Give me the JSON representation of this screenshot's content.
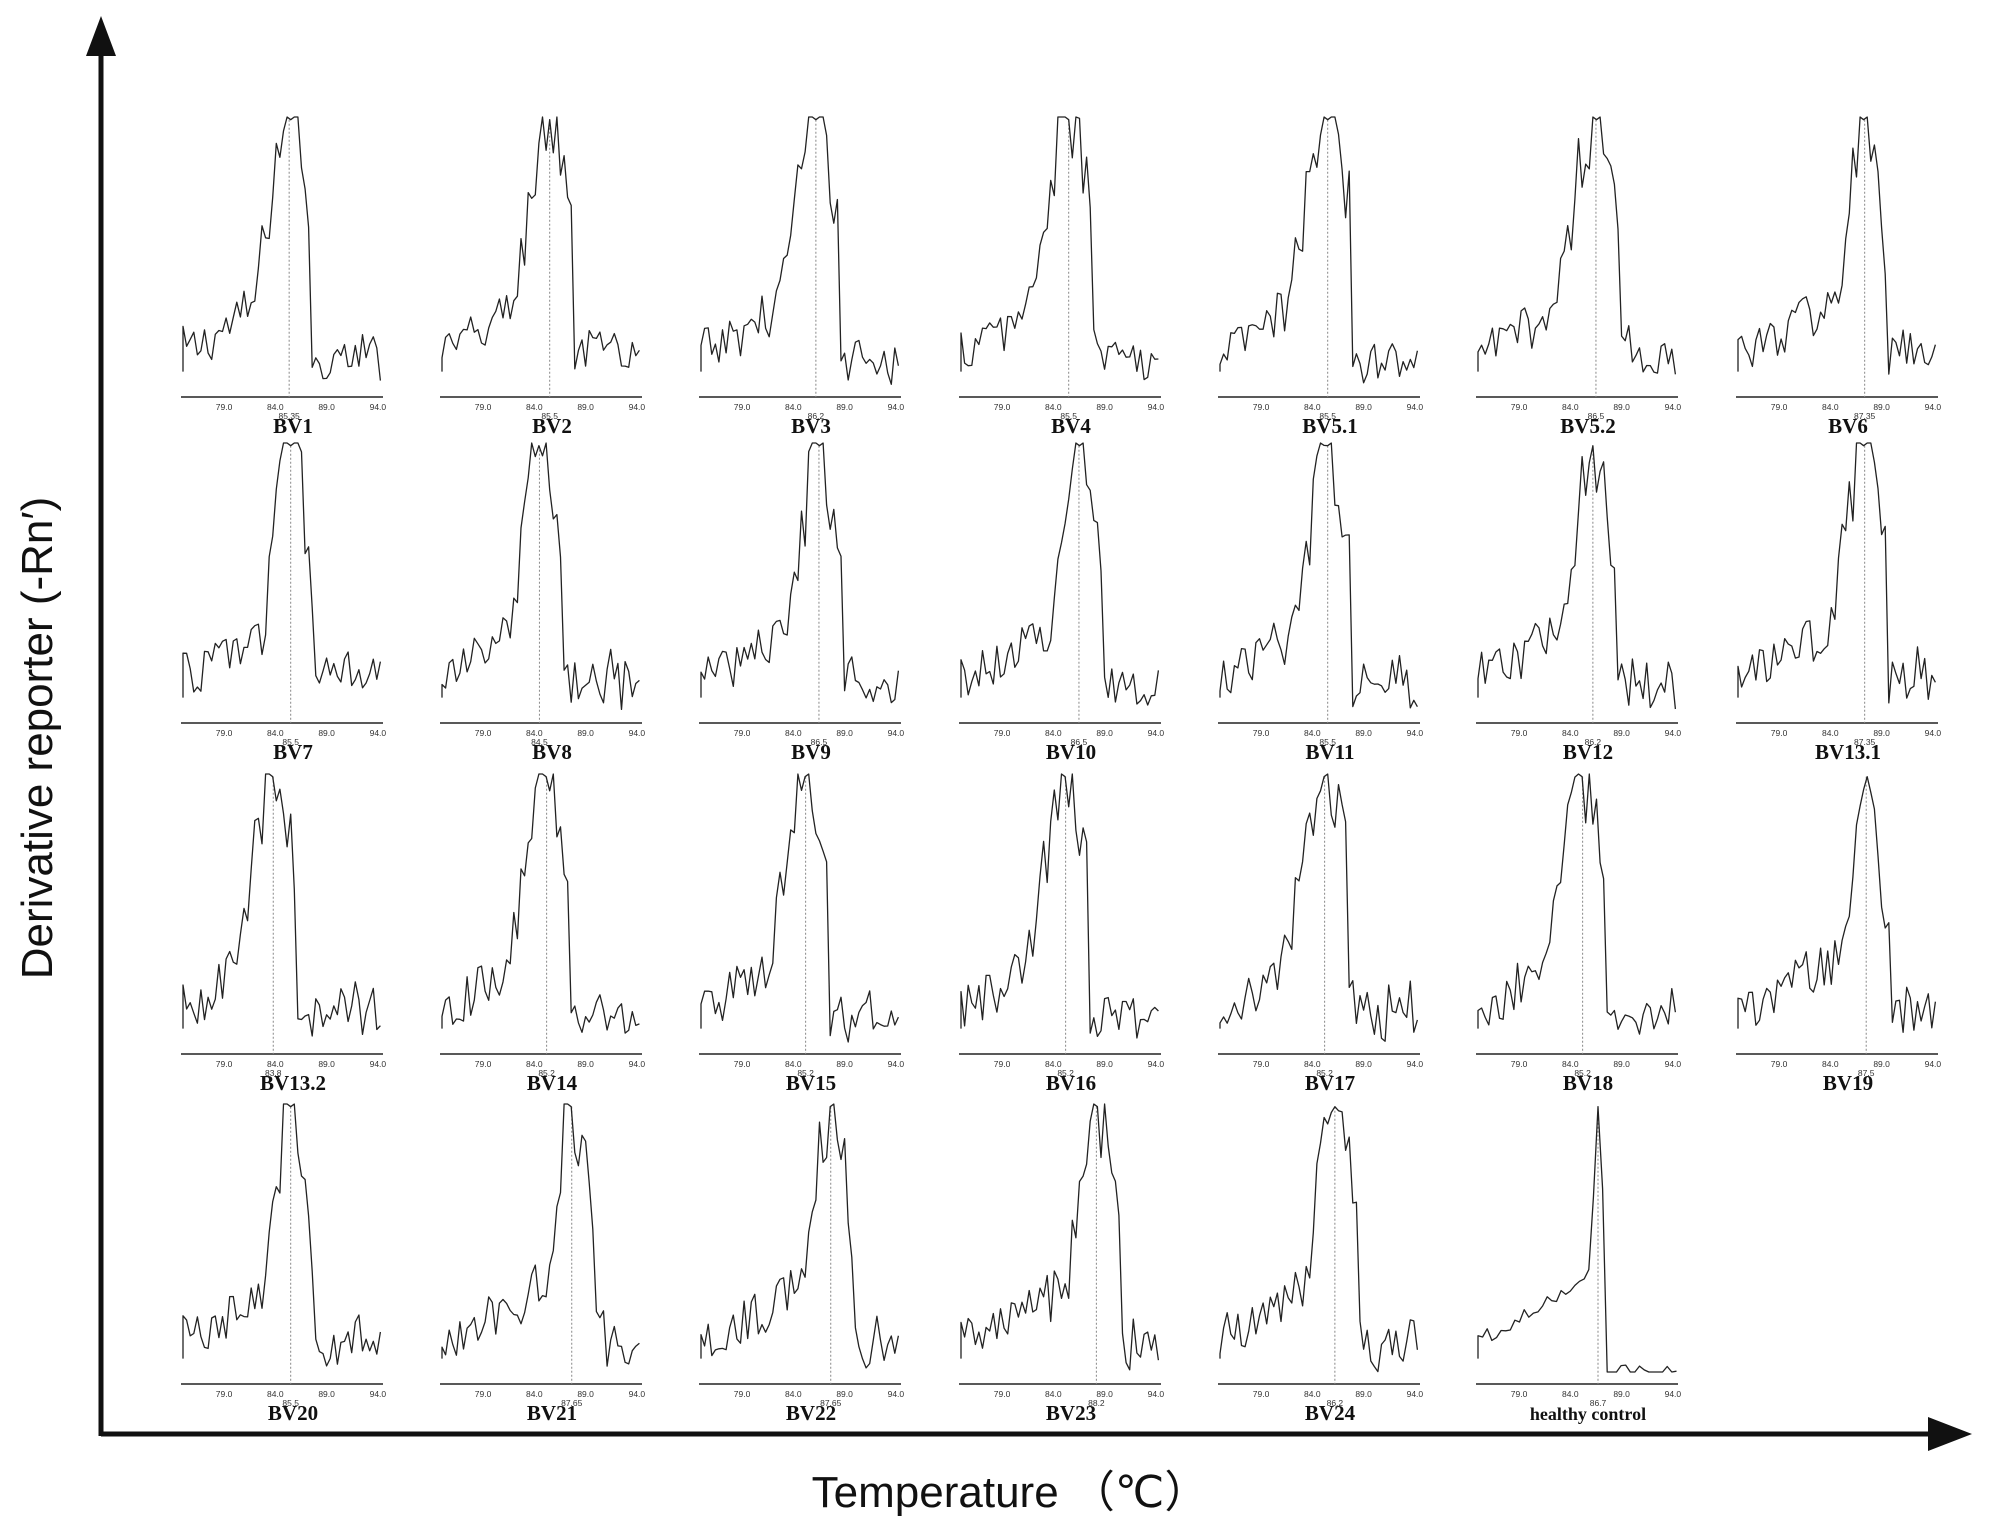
{
  "chart_data": {
    "type": "line",
    "title": "",
    "xlabel": "Temperature （℃）",
    "ylabel": "Derivative reporter (-Rn′)",
    "xlim": [
      75.0,
      94.5
    ],
    "ylim": [
      0,
      1
    ],
    "x_ticks": [
      "79.0",
      "84.0",
      "89.0",
      "94.0"
    ],
    "grid": false,
    "panels": [
      {
        "name": "BV1",
        "peak_label": "85.35",
        "peak": 85.35
      },
      {
        "name": "BV2",
        "peak_label": "85.5",
        "peak": 85.5
      },
      {
        "name": "BV3",
        "peak_label": "86.2",
        "peak": 86.2
      },
      {
        "name": "BV4",
        "peak_label": "85.5",
        "peak": 85.5
      },
      {
        "name": "BV5.1",
        "peak_label": "85.5",
        "peak": 85.5
      },
      {
        "name": "BV5.2",
        "peak_label": "86.5",
        "peak": 86.5
      },
      {
        "name": "BV6",
        "peak_label": "87.35",
        "peak": 87.35
      },
      {
        "name": "BV7",
        "peak_label": "85.5",
        "peak": 85.5
      },
      {
        "name": "BV8",
        "peak_label": "84.5",
        "peak": 84.5
      },
      {
        "name": "BV9",
        "peak_label": "86.5",
        "peak": 86.5
      },
      {
        "name": "BV10",
        "peak_label": "86.5",
        "peak": 86.5
      },
      {
        "name": "BV11",
        "peak_label": "85.5",
        "peak": 85.5
      },
      {
        "name": "BV12",
        "peak_label": "86.2",
        "peak": 86.2
      },
      {
        "name": "BV13.1",
        "peak_label": "87.35",
        "peak": 87.35
      },
      {
        "name": "BV13.2",
        "peak_label": "83.8",
        "peak": 83.8
      },
      {
        "name": "BV14",
        "peak_label": "85.2",
        "peak": 85.2
      },
      {
        "name": "BV15",
        "peak_label": "85.2",
        "peak": 85.2
      },
      {
        "name": "BV16",
        "peak_label": "85.2",
        "peak": 85.2
      },
      {
        "name": "BV17",
        "peak_label": "85.2",
        "peak": 85.2
      },
      {
        "name": "BV18",
        "peak_label": "85.2",
        "peak": 85.2
      },
      {
        "name": "BV19",
        "peak_label": "87.5",
        "peak": 87.5
      },
      {
        "name": "BV20",
        "peak_label": "85.5",
        "peak": 85.5
      },
      {
        "name": "BV21",
        "peak_label": "87.65",
        "peak": 87.65
      },
      {
        "name": "BV22",
        "peak_label": "87.65",
        "peak": 87.65
      },
      {
        "name": "BV23",
        "peak_label": "88.2",
        "peak": 88.2
      },
      {
        "name": "BV24",
        "peak_label": "86.2",
        "peak": 86.2
      },
      {
        "name": "healthy control",
        "peak_label": "86.7",
        "peak": 86.7
      }
    ]
  }
}
